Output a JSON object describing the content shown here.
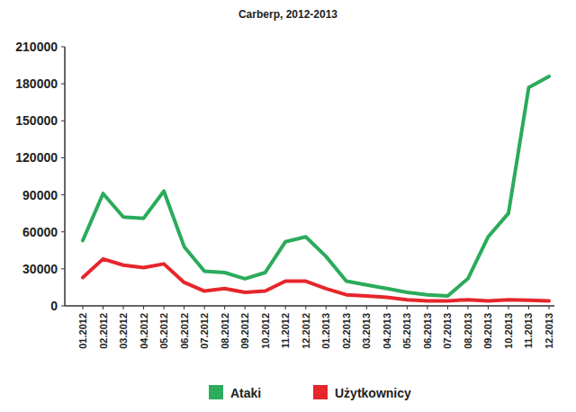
{
  "chart_data": {
    "type": "line",
    "title": "Carberp, 2012-2013",
    "categories": [
      "01.2012",
      "02.2012",
      "03.2012",
      "04.2012",
      "05.2012",
      "06.2012",
      "07.2012",
      "08.2012",
      "09.2012",
      "10.2012",
      "11.2012",
      "12.2012",
      "01.2013",
      "02.2013",
      "03.2013",
      "04.2013",
      "05.2013",
      "06.2013",
      "07.2013",
      "08.2013",
      "09.2013",
      "10.2013",
      "11.2013",
      "12.2013"
    ],
    "series": [
      {
        "name": "Ataki",
        "color": "#2bab5b",
        "values": [
          53000,
          91000,
          72000,
          71000,
          93000,
          48000,
          28000,
          27000,
          22000,
          27000,
          52000,
          56000,
          40000,
          20000,
          17000,
          14000,
          11000,
          9000,
          8000,
          22000,
          56000,
          75000,
          177000,
          186000
        ]
      },
      {
        "name": "Użytkownicy",
        "color": "#e5262c",
        "values": [
          23000,
          38000,
          33000,
          31000,
          34000,
          19000,
          12000,
          14000,
          11000,
          12000,
          20000,
          20000,
          14000,
          9000,
          8000,
          7000,
          5000,
          4000,
          4000,
          5000,
          4000,
          5000,
          4500,
          4000
        ]
      }
    ],
    "ylim": [
      0,
      210000
    ],
    "yticks": [
      0,
      30000,
      60000,
      90000,
      120000,
      150000,
      180000,
      210000
    ],
    "grid": false,
    "legend": "bottom"
  }
}
